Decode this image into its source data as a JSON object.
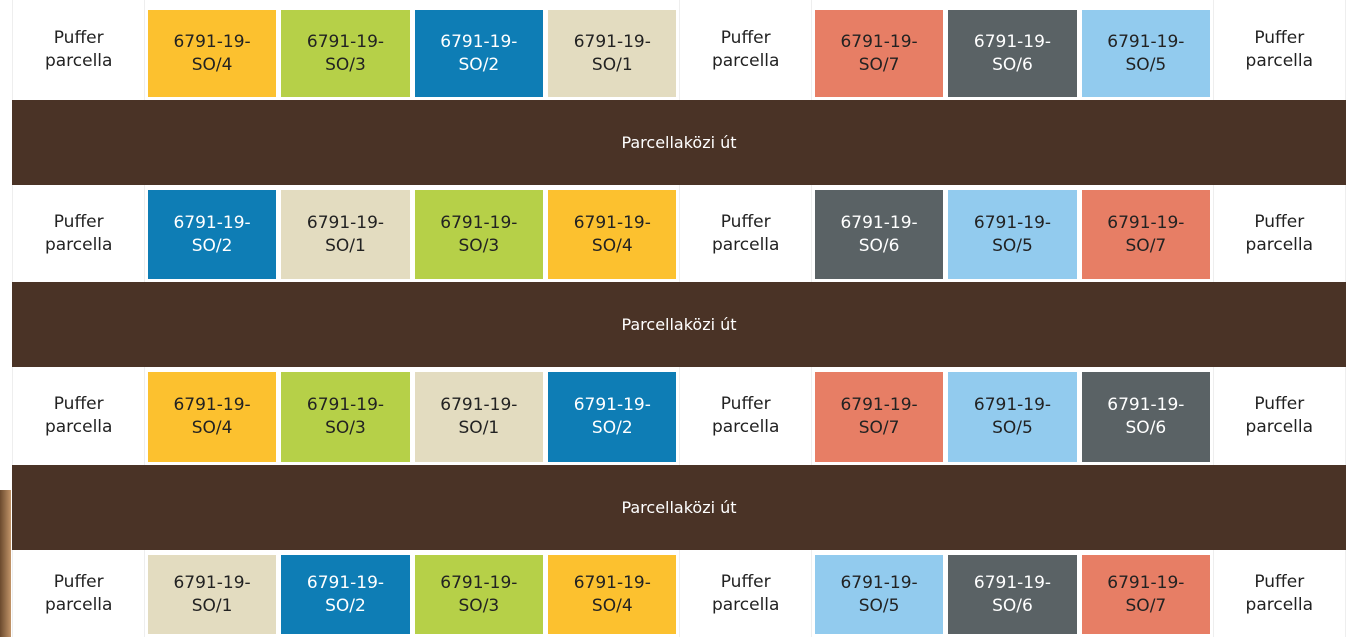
{
  "rows": [
    {
      "cells": [
        {
          "label": "Puffer parcella"
        },
        {
          "label": "6791-19-SO/4",
          "color": "#fcc12f"
        },
        {
          "label": "6791-19-SO/3",
          "color": "#b6d048"
        },
        {
          "label": "6791-19-SO/2",
          "color": "#0e7db5"
        },
        {
          "label": "6791-19-SO/1",
          "color": "#e3dcc0"
        },
        {
          "label": "Puffer parcella"
        },
        {
          "label": "6791-19-SO/7",
          "color": "#e77e65"
        },
        {
          "label": "6791-19-SO/6",
          "color": "#5a6265"
        },
        {
          "label": "6791-19-SO/5",
          "color": "#92cbee"
        },
        {
          "label": "Puffer parcella"
        }
      ]
    },
    {
      "road": "Parcellaközi út"
    },
    {
      "cells": [
        {
          "label": "Puffer parcella"
        },
        {
          "label": "6791-19-SO/2",
          "color": "#0e7db5"
        },
        {
          "label": "6791-19-SO/1",
          "color": "#e3dcc0"
        },
        {
          "label": "6791-19-SO/3",
          "color": "#b6d048"
        },
        {
          "label": "6791-19-SO/4",
          "color": "#fcc12f"
        },
        {
          "label": "Puffer parcella"
        },
        {
          "label": "6791-19-SO/6",
          "color": "#5a6265"
        },
        {
          "label": "6791-19-SO/5",
          "color": "#92cbee"
        },
        {
          "label": "6791-19-SO/7",
          "color": "#e77e65"
        },
        {
          "label": "Puffer parcella"
        }
      ]
    },
    {
      "road": "Parcellaközi út"
    },
    {
      "cells": [
        {
          "label": "Puffer parcella"
        },
        {
          "label": "6791-19-SO/4",
          "color": "#fcc12f"
        },
        {
          "label": "6791-19-SO/3",
          "color": "#b6d048"
        },
        {
          "label": "6791-19-SO/1",
          "color": "#e3dcc0"
        },
        {
          "label": "6791-19-SO/2",
          "color": "#0e7db5"
        },
        {
          "label": "Puffer parcella"
        },
        {
          "label": "6791-19-SO/7",
          "color": "#e77e65"
        },
        {
          "label": "6791-19-SO/5",
          "color": "#92cbee"
        },
        {
          "label": "6791-19-SO/6",
          "color": "#5a6265"
        },
        {
          "label": "Puffer parcella"
        }
      ]
    },
    {
      "road": "Parcellaközi út"
    },
    {
      "cells": [
        {
          "label": "Puffer parcella"
        },
        {
          "label": "6791-19-SO/1",
          "color": "#e3dcc0"
        },
        {
          "label": "6791-19-SO/2",
          "color": "#0e7db5"
        },
        {
          "label": "6791-19-SO/3",
          "color": "#b6d048"
        },
        {
          "label": "6791-19-SO/4",
          "color": "#fcc12f"
        },
        {
          "label": "Puffer parcella"
        },
        {
          "label": "6791-19-SO/5",
          "color": "#92cbee"
        },
        {
          "label": "6791-19-SO/6",
          "color": "#5a6265"
        },
        {
          "label": "6791-19-SO/7",
          "color": "#e77e65"
        },
        {
          "label": "Puffer parcella"
        }
      ]
    }
  ]
}
